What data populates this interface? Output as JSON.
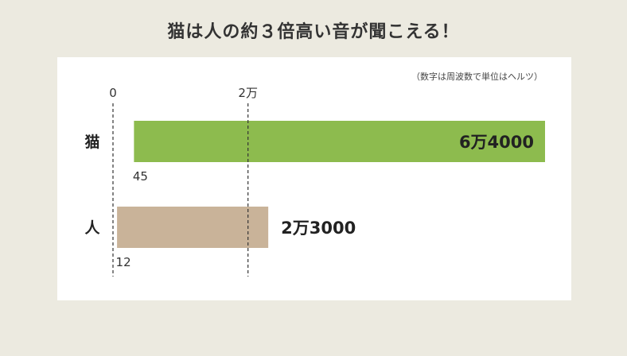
{
  "title": "猫は人の約３倍高い音が聞こえる！",
  "note": "（数字は周波数で単位はヘルツ）",
  "chart_data": {
    "type": "bar",
    "orientation": "horizontal",
    "title": "猫は人の約３倍高い音が聞こえる！",
    "unit_note": "（数字は周波数で単位はヘルツ）",
    "x_ticks": [
      {
        "value": 0,
        "label": "0"
      },
      {
        "value": 20000,
        "label": "2万"
      }
    ],
    "categories": [
      "猫",
      "人"
    ],
    "ranges": [
      {
        "category": "猫",
        "min": 45,
        "max": 64000,
        "min_label": "45",
        "max_label": "6万4000",
        "color": "#8DBB4E"
      },
      {
        "category": "人",
        "min": 12,
        "max": 23000,
        "min_label": "12",
        "max_label": "2万3000",
        "color": "#C9B399"
      }
    ],
    "xlim": [
      0,
      64000
    ],
    "grid": false
  }
}
